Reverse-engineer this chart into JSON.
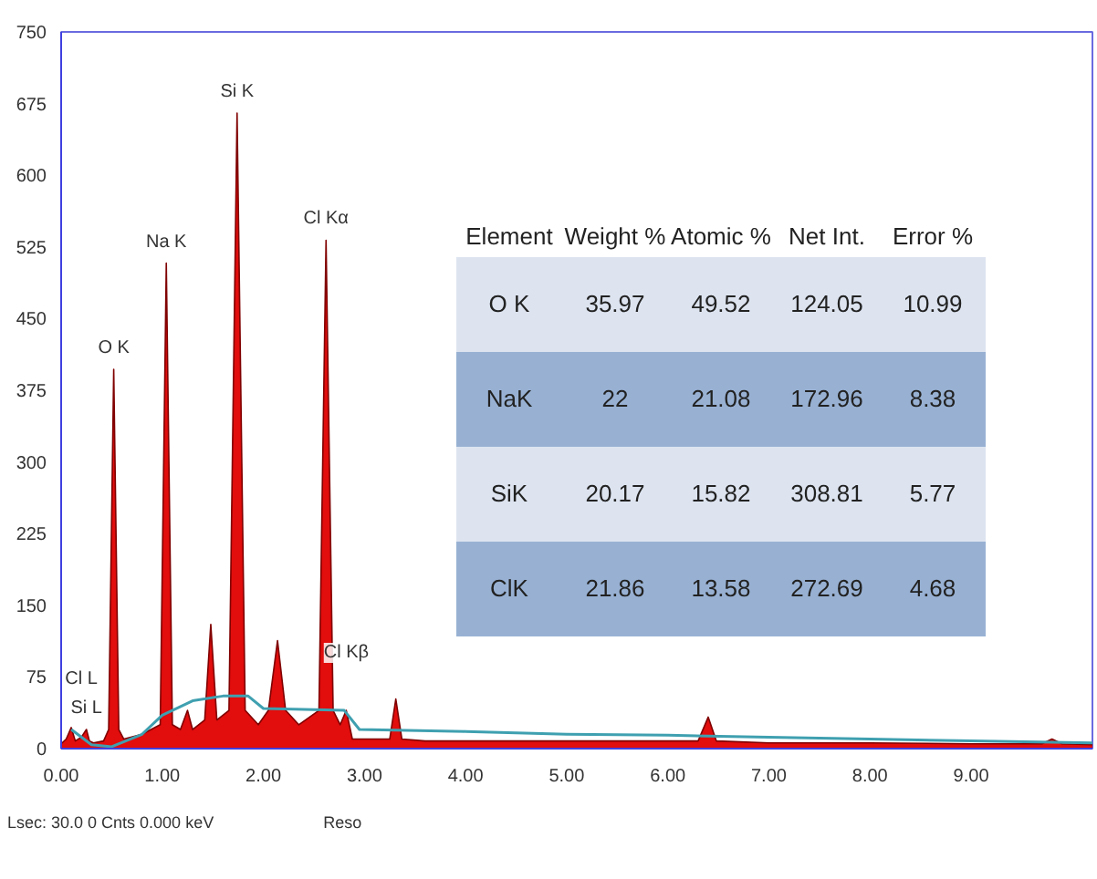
{
  "chart_data": {
    "type": "area",
    "xlim": [
      0,
      10.2
    ],
    "ylim": [
      0,
      750
    ],
    "xticks": [
      {
        "value": 0,
        "label": "0.00"
      },
      {
        "value": 1,
        "label": "1.00"
      },
      {
        "value": 2,
        "label": "2.00"
      },
      {
        "value": 3,
        "label": "3.00"
      },
      {
        "value": 4,
        "label": "4.00"
      },
      {
        "value": 5,
        "label": "5.00"
      },
      {
        "value": 6,
        "label": "6.00"
      },
      {
        "value": 7,
        "label": "7.00"
      },
      {
        "value": 8,
        "label": "8.00"
      },
      {
        "value": 9,
        "label": "9.00"
      }
    ],
    "yticks": [
      0,
      75,
      150,
      225,
      300,
      375,
      450,
      525,
      600,
      675,
      750
    ],
    "grid": false,
    "series": [
      {
        "color": "#e00000",
        "x": [
          0,
          0.05,
          0.1,
          0.14,
          0.2,
          0.25,
          0.28,
          0.32,
          0.42,
          0.47,
          0.52,
          0.57,
          0.62,
          0.8,
          0.98,
          1.04,
          1.1,
          1.18,
          1.25,
          1.3,
          1.42,
          1.48,
          1.54,
          1.66,
          1.74,
          1.82,
          1.95,
          2.05,
          2.14,
          2.22,
          2.35,
          2.55,
          2.62,
          2.69,
          2.76,
          2.82,
          2.88,
          3.1,
          3.25,
          3.31,
          3.37,
          3.6,
          4.0,
          5.0,
          6.3,
          6.4,
          6.48,
          7.0,
          8.0,
          9.0,
          9.7,
          9.8,
          9.9,
          10.2
        ],
        "values": [
          5,
          10,
          22,
          8,
          12,
          20,
          8,
          6,
          8,
          20,
          397,
          20,
          10,
          15,
          25,
          508,
          25,
          20,
          40,
          20,
          30,
          130,
          30,
          40,
          665,
          40,
          25,
          40,
          113,
          40,
          25,
          40,
          532,
          40,
          25,
          40,
          10,
          10,
          10,
          52,
          10,
          8,
          8,
          8,
          8,
          33,
          8,
          6,
          6,
          5,
          5,
          10,
          5,
          4
        ]
      },
      {
        "type": "line",
        "color": "#3fa0b0",
        "x": [
          0.1,
          0.3,
          0.5,
          0.8,
          1.0,
          1.3,
          1.6,
          1.85,
          2.0,
          2.8,
          2.95,
          4.0,
          5.0,
          6.0,
          7.0,
          8.0,
          9.0,
          10.2
        ],
        "values": [
          20,
          4,
          2,
          15,
          35,
          50,
          55,
          55,
          42,
          40,
          20,
          18,
          15,
          14,
          12,
          10,
          8,
          6
        ]
      }
    ],
    "annotations": [
      {
        "text": "O K",
        "x": 0.52,
        "y": 397
      },
      {
        "text": "Na K",
        "x": 1.04,
        "y": 508
      },
      {
        "text": "Si K",
        "x": 1.74,
        "y": 665
      },
      {
        "text": "Cl Kα",
        "x": 2.62,
        "y": 532
      },
      {
        "text": "Cl Kβ",
        "x": 2.82,
        "y": 40
      },
      {
        "text": "Si L",
        "x": 0.25,
        "y": 20
      },
      {
        "text": "Cl L",
        "x": 0.2,
        "y": 12
      },
      "Element",
      "Weight %",
      "Atomic %",
      "Net Int.",
      "Error %",
      "O K",
      "35.97",
      "49.52",
      "124.05",
      "10.99",
      "NaK",
      "22",
      "21.08",
      "172.96",
      "8.38",
      "SiK",
      "20.17",
      "15.82",
      "308.81",
      "5.77",
      "ClK",
      "21.86",
      "13.58",
      "272.69",
      "4.68",
      "Lsec: 30.0 0 Cnts 0.000 keV",
      "Reso"
    ]
  }
}
